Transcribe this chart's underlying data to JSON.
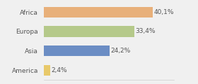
{
  "categories": [
    "Africa",
    "Europa",
    "Asia",
    "America"
  ],
  "values": [
    40.1,
    33.4,
    24.2,
    2.4
  ],
  "labels": [
    "40,1%",
    "33,4%",
    "24,2%",
    "2,4%"
  ],
  "bar_colors": [
    "#e8b07a",
    "#b5c98a",
    "#6b8dc4",
    "#e8c96a"
  ],
  "background_color": "#f0f0f0",
  "xlim": [
    0,
    48
  ],
  "label_fontsize": 6.5,
  "tick_fontsize": 6.5,
  "bar_height": 0.55
}
